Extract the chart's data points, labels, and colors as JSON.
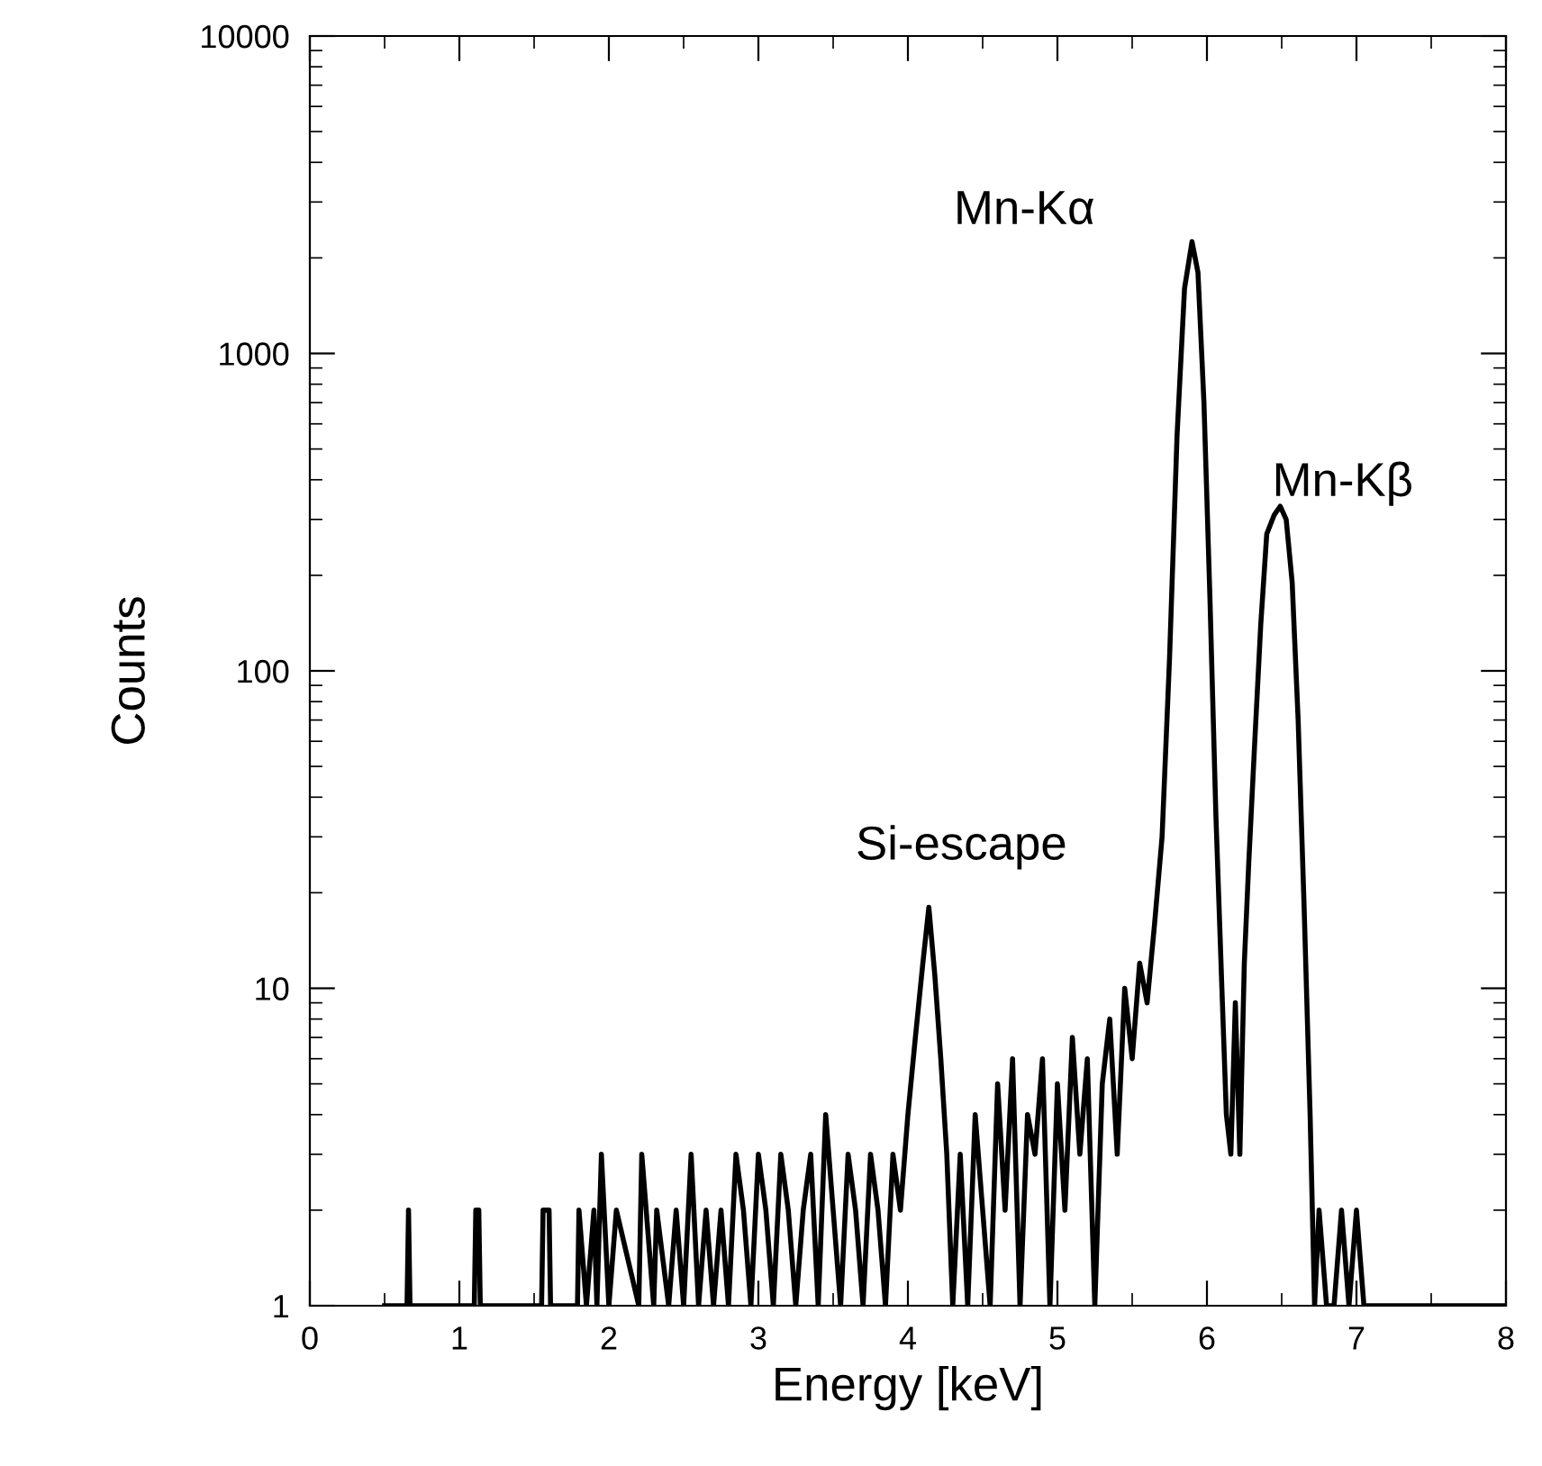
{
  "chart_data": {
    "type": "line",
    "xlabel": "Energy [keV]",
    "ylabel": "Counts",
    "log": "y",
    "xlim": [
      0,
      8
    ],
    "xticks": [
      0,
      1,
      2,
      3,
      4,
      5,
      6,
      7,
      8
    ],
    "ylim": [
      1,
      10000
    ],
    "yticks": [
      1,
      10,
      100,
      1000,
      10000
    ],
    "grid": false,
    "legend": false,
    "series": [
      {
        "color": "#000000",
        "x": [
          0.5,
          0.65,
          0.66,
          0.67,
          1.1,
          1.11,
          1.13,
          1.14,
          1.55,
          1.56,
          1.6,
          1.61,
          1.79,
          1.8,
          1.85,
          1.9,
          1.92,
          1.95,
          2.0,
          2.05,
          2.2,
          2.22,
          2.3,
          2.32,
          2.4,
          2.45,
          2.5,
          2.55,
          2.6,
          2.65,
          2.7,
          2.75,
          2.8,
          2.85,
          2.9,
          2.95,
          3.0,
          3.05,
          3.1,
          3.15,
          3.2,
          3.25,
          3.3,
          3.35,
          3.4,
          3.45,
          3.5,
          3.55,
          3.6,
          3.65,
          3.7,
          3.75,
          3.8,
          3.85,
          3.9,
          3.95,
          4.0,
          4.05,
          4.1,
          4.14,
          4.18,
          4.22,
          4.26,
          4.3,
          4.35,
          4.4,
          4.45,
          4.5,
          4.55,
          4.6,
          4.65,
          4.7,
          4.75,
          4.8,
          4.85,
          4.9,
          4.95,
          5.0,
          5.05,
          5.1,
          5.15,
          5.2,
          5.25,
          5.3,
          5.35,
          5.4,
          5.45,
          5.5,
          5.55,
          5.6,
          5.65,
          5.7,
          5.75,
          5.8,
          5.85,
          5.9,
          5.94,
          5.98,
          6.02,
          6.06,
          6.1,
          6.13,
          6.16,
          6.19,
          6.22,
          6.25,
          6.28,
          6.32,
          6.36,
          6.4,
          6.45,
          6.49,
          6.53,
          6.57,
          6.61,
          6.65,
          6.69,
          6.72,
          6.75,
          6.8,
          6.85,
          6.9,
          6.95,
          7.0,
          7.05,
          7.1,
          8.0
        ],
        "values": [
          1,
          1,
          2,
          1,
          1,
          2,
          2,
          1,
          1,
          2,
          2,
          1,
          1,
          2,
          1,
          2,
          1,
          3,
          1,
          2,
          1,
          3,
          1,
          2,
          1,
          2,
          1,
          3,
          1,
          2,
          1,
          2,
          1,
          3,
          2,
          1,
          3,
          2,
          1,
          3,
          2,
          1,
          2,
          3,
          1,
          4,
          2,
          1,
          3,
          2,
          1,
          3,
          2,
          1,
          3,
          2,
          4,
          7,
          12,
          18,
          11,
          6,
          3,
          1,
          3,
          1,
          4,
          2,
          1,
          5,
          2,
          6,
          1,
          4,
          3,
          6,
          1,
          5,
          2,
          7,
          3,
          6,
          1,
          5,
          8,
          3,
          10,
          6,
          12,
          9,
          16,
          30,
          110,
          550,
          1600,
          2250,
          1800,
          700,
          170,
          35,
          10,
          4,
          3,
          9,
          3,
          12,
          25,
          60,
          140,
          270,
          310,
          330,
          300,
          190,
          70,
          18,
          4,
          1,
          2,
          1,
          1,
          2,
          1,
          2,
          1,
          1,
          1
        ]
      }
    ],
    "annotations": [
      {
        "text": "Si-escape",
        "x": 4.14,
        "y": 18
      },
      {
        "text": "Mn-Kα",
        "x": 5.9,
        "y": 2250
      },
      {
        "text": "Mn-Kβ",
        "x": 6.49,
        "y": 330
      }
    ]
  }
}
